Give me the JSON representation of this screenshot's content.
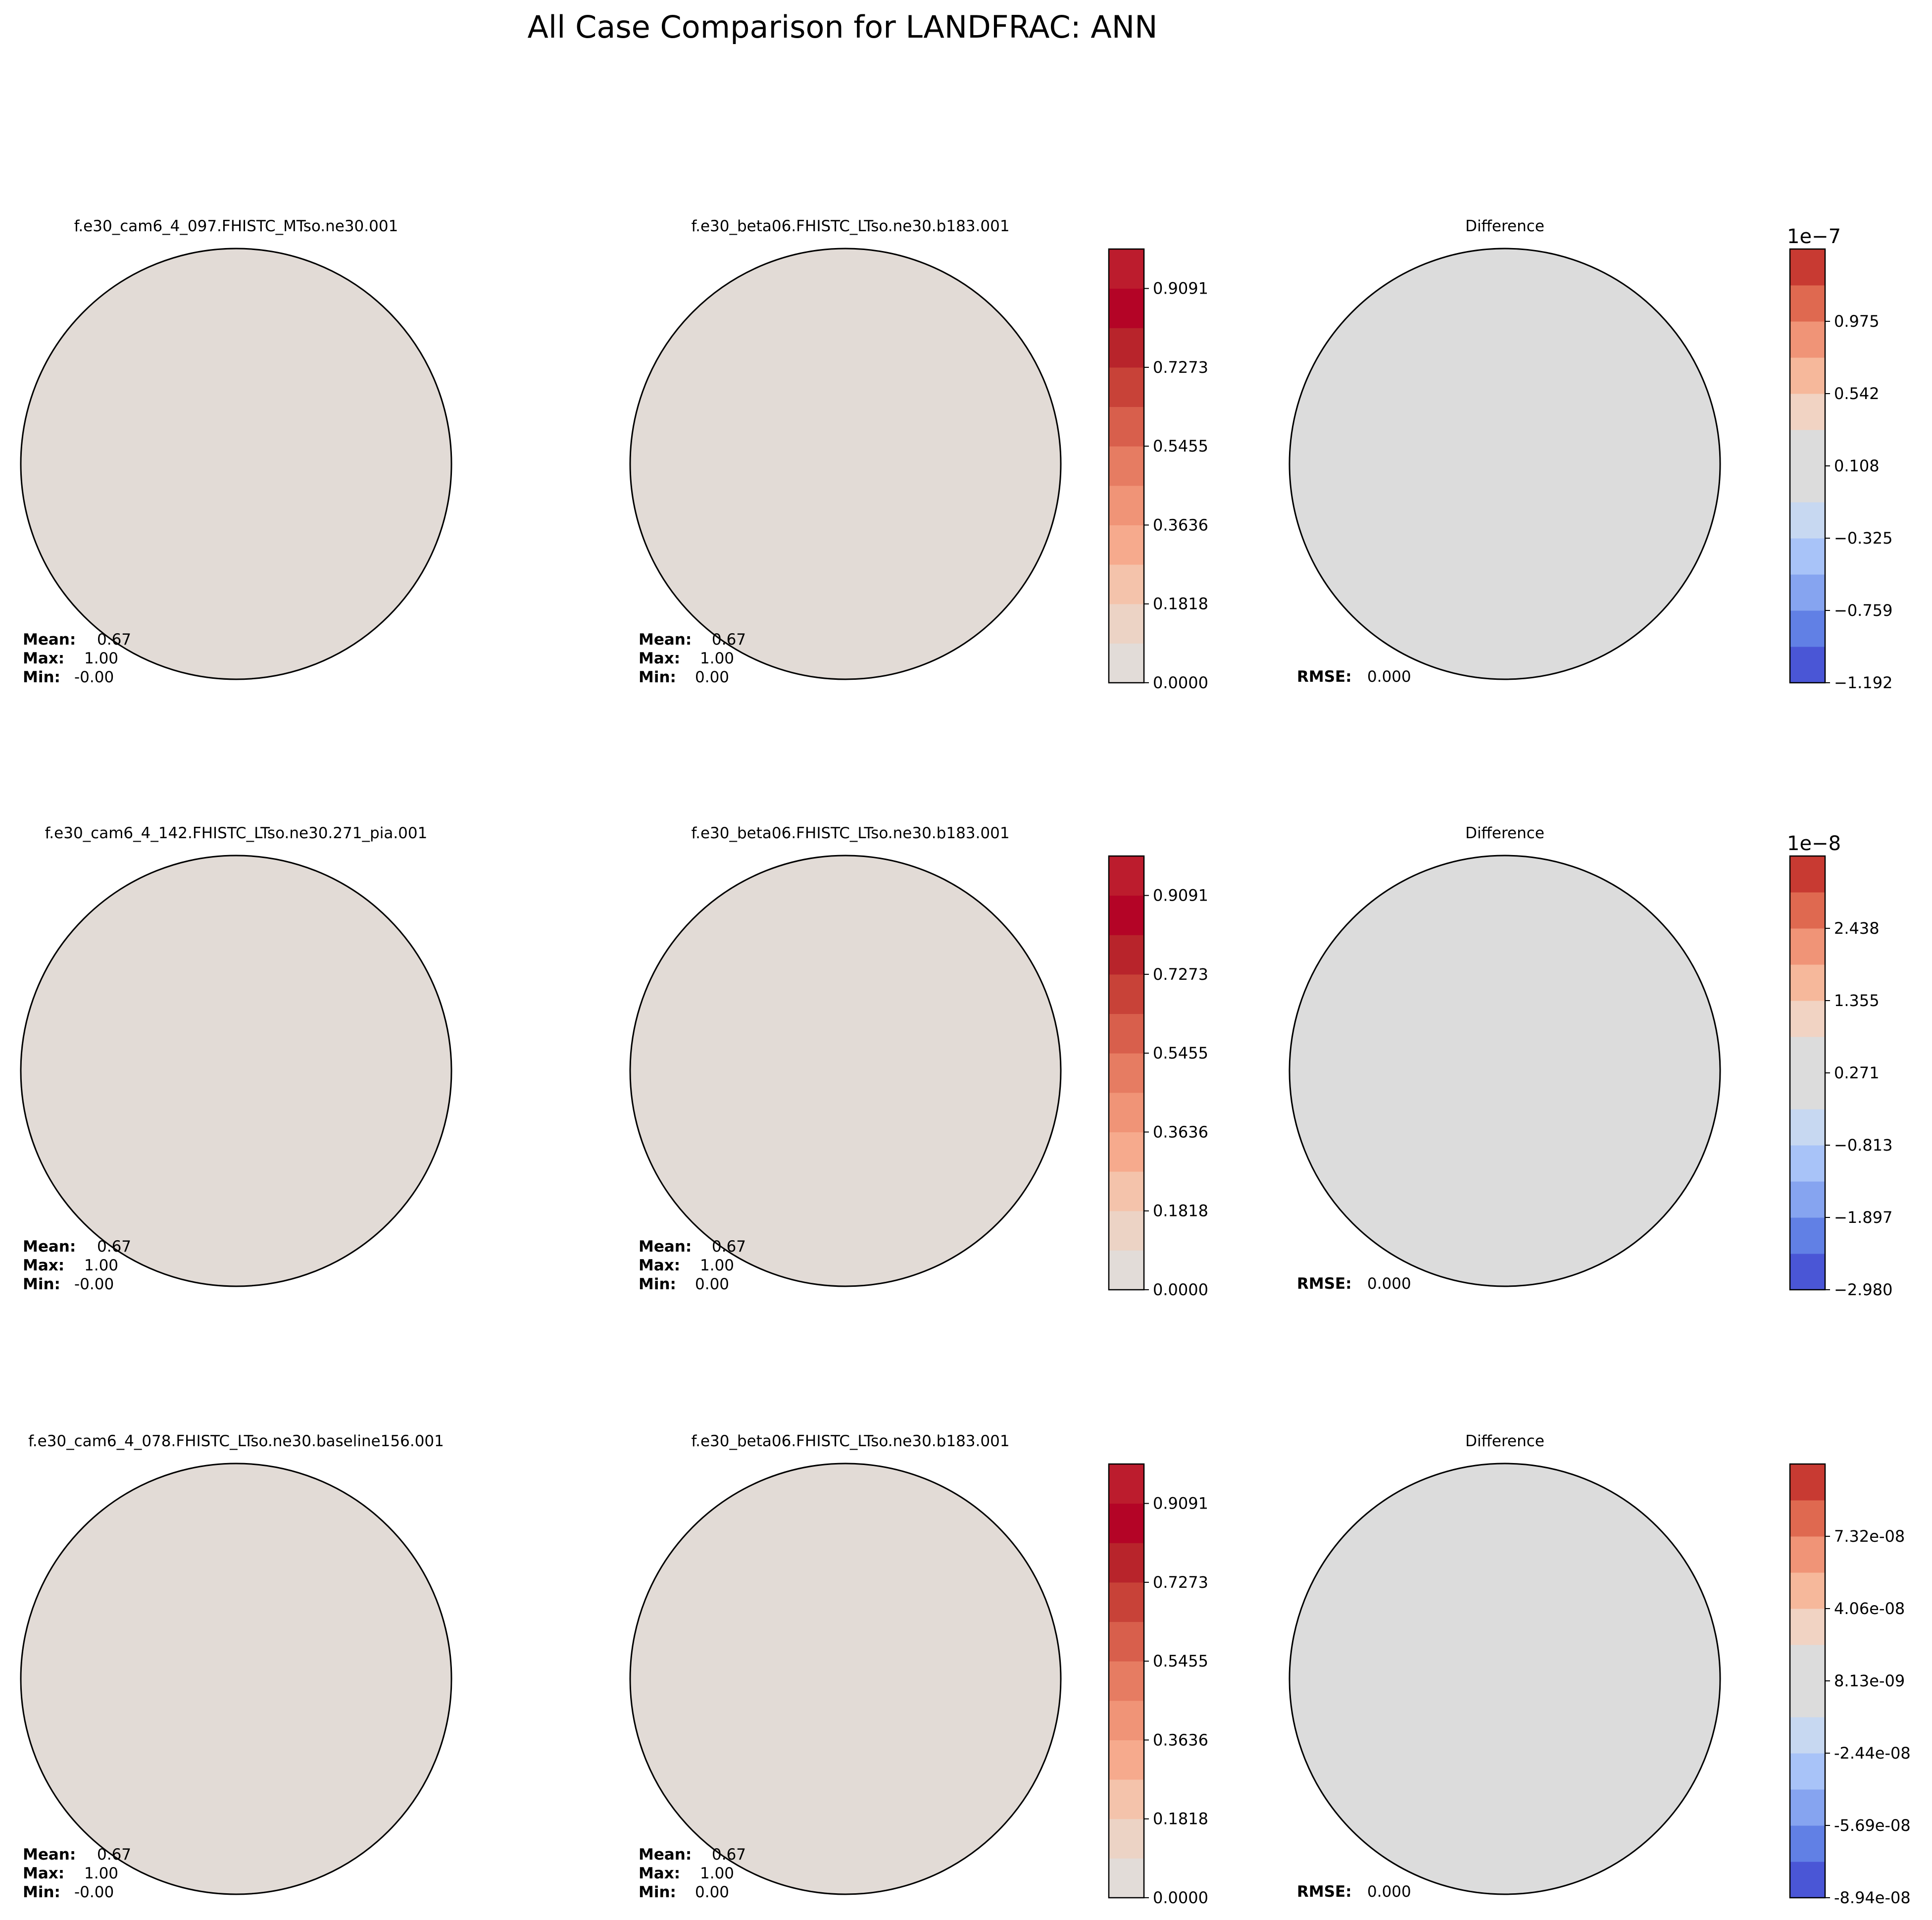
{
  "title": "All Case Comparison for LANDFRAC: ANN",
  "chart_data": [
    {
      "type": "heatmap",
      "projection": "north polar stereographic",
      "rows": [
        {
          "test_case": {
            "title": "f.e30_cam6_4_097.FHISTC_MTso.ne30.001",
            "stats": {
              "mean_label": "Mean:",
              "mean": "0.67",
              "max_label": "Max:",
              "max": "1.00",
              "min_label": "Min:",
              "min": "-0.00"
            }
          },
          "baseline_case": {
            "title": "f.e30_beta06.FHISTC_LTso.ne30.b183.001",
            "stats": {
              "mean_label": "Mean:",
              "mean": "0.67",
              "max_label": "Max:",
              "max": "1.00",
              "min_label": "Min:",
              "min": "0.00"
            },
            "colorbar_ticks": [
              "0.9091",
              "0.7273",
              "0.5455",
              "0.3636",
              "0.1818",
              "0.0000"
            ]
          },
          "difference": {
            "title": "Difference",
            "rmse_label": "RMSE:",
            "rmse": "0.000",
            "colorbar_exponent": "1e−7",
            "colorbar_ticks": [
              "0.975",
              "0.542",
              "0.108",
              "−0.325",
              "−0.759",
              "−1.192"
            ]
          }
        },
        {
          "test_case": {
            "title": "f.e30_cam6_4_142.FHISTC_LTso.ne30.271_pia.001",
            "stats": {
              "mean_label": "Mean:",
              "mean": "0.67",
              "max_label": "Max:",
              "max": "1.00",
              "min_label": "Min:",
              "min": "-0.00"
            }
          },
          "baseline_case": {
            "title": "f.e30_beta06.FHISTC_LTso.ne30.b183.001",
            "stats": {
              "mean_label": "Mean:",
              "mean": "0.67",
              "max_label": "Max:",
              "max": "1.00",
              "min_label": "Min:",
              "min": "0.00"
            },
            "colorbar_ticks": [
              "0.9091",
              "0.7273",
              "0.5455",
              "0.3636",
              "0.1818",
              "0.0000"
            ]
          },
          "difference": {
            "title": "Difference",
            "rmse_label": "RMSE:",
            "rmse": "0.000",
            "colorbar_exponent": "1e−8",
            "colorbar_ticks": [
              "2.438",
              "1.355",
              "0.271",
              "−0.813",
              "−1.897",
              "−2.980"
            ]
          }
        },
        {
          "test_case": {
            "title": "f.e30_cam6_4_078.FHISTC_LTso.ne30.baseline156.001",
            "stats": {
              "mean_label": "Mean:",
              "mean": "0.67",
              "max_label": "Max:",
              "max": "1.00",
              "min_label": "Min:",
              "min": "-0.00"
            }
          },
          "baseline_case": {
            "title": "f.e30_beta06.FHISTC_LTso.ne30.b183.001",
            "stats": {
              "mean_label": "Mean:",
              "mean": "0.67",
              "max_label": "Max:",
              "max": "1.00",
              "min_label": "Min:",
              "min": "0.00"
            },
            "colorbar_ticks": [
              "0.9091",
              "0.7273",
              "0.5455",
              "0.3636",
              "0.1818",
              "0.0000"
            ]
          },
          "difference": {
            "title": "Difference",
            "rmse_label": "RMSE:",
            "rmse": "0.000",
            "colorbar_exponent": "",
            "colorbar_ticks": [
              "7.32e-08",
              "4.06e-08",
              "8.13e-09",
              "-2.44e-08",
              "-5.69e-08",
              "-8.94e-08"
            ]
          }
        }
      ],
      "field_range": [
        0,
        1
      ],
      "field_levels": 11,
      "diff_levels": 12,
      "colors": {
        "field": [
          "#e2dcd8",
          "#ecd3c5",
          "#f4c3ab",
          "#f6aa8d",
          "#f09477",
          "#e67c62",
          "#d85f4c",
          "#c84238",
          "#b8242b",
          "#b40426",
          "#bc1c2d"
        ],
        "land": "#bb1b2e",
        "ocean_field": "#e2dbd6",
        "diff": [
          "#4a56d6",
          "#6180e5",
          "#86a4f0",
          "#a8c3f8",
          "#c7d8f1",
          "#dcdcdc",
          "#dcdcdc",
          "#f1d3c3",
          "#f6b89b",
          "#f09477",
          "#df6950",
          "#c83a32"
        ],
        "ocean_diff": "#dcdcdc",
        "coast": "#000000"
      }
    }
  ]
}
